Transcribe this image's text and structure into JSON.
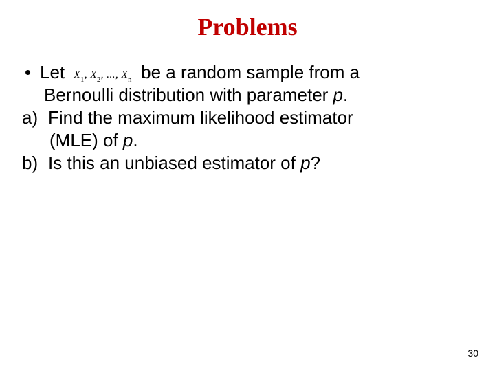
{
  "title": {
    "text": "Problems",
    "color": "#c00000",
    "fontsize": 36
  },
  "body": {
    "fontsize": 26,
    "color": "#000000",
    "lines": {
      "bullet_lead": "Let",
      "formula": "X",
      "formula_subs": [
        "1",
        "2",
        "n"
      ],
      "line1_tail": "be a random sample from a",
      "line2": "Bernoulli distribution with parameter ",
      "line2_param": "p",
      "line2_tail": ".",
      "a_label": "a)",
      "a_text1": "Find the maximum likelihood estimator",
      "a_text2_pre": "(MLE) of ",
      "a_text2_param": "p",
      "a_text2_tail": ".",
      "b_label": "b)",
      "b_text_pre": "Is this an unbiased estimator of ",
      "b_param": "p",
      "b_tail": "?"
    }
  },
  "page_number": {
    "value": "30",
    "fontsize": 14,
    "color": "#000000"
  }
}
